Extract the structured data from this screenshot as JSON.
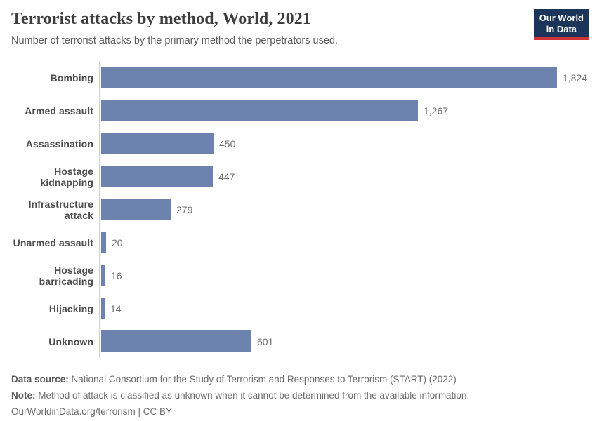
{
  "header": {
    "title": "Terrorist attacks by method, World, 2021",
    "subtitle": "Number of terrorist attacks by the primary method the perpetrators used.",
    "logo": {
      "line1": "Our World",
      "line2": "in Data"
    }
  },
  "chart_data": {
    "type": "bar",
    "orientation": "horizontal",
    "title": "Terrorist attacks by method, World, 2021",
    "subtitle": "Number of terrorist attacks by the primary method the perpetrators used.",
    "categories": [
      "Bombing",
      "Armed assault",
      "Assassination",
      "Hostage kidnapping",
      "Infrastructure attack",
      "Unarmed assault",
      "Hostage barricading",
      "Hijacking",
      "Unknown"
    ],
    "values": [
      1824,
      1267,
      450,
      447,
      279,
      20,
      16,
      14,
      601
    ],
    "value_labels": [
      "1,824",
      "1,267",
      "450",
      "447",
      "279",
      "20",
      "16",
      "14",
      "601"
    ],
    "xlabel": "",
    "ylabel": "",
    "xlim": [
      0,
      1824
    ],
    "grid": false,
    "legend": "none",
    "bar_color": "#6c84ad"
  },
  "footer": {
    "data_source_label": "Data source:",
    "data_source_text": " National Consortium for the Study of Terrorism and Responses to Terrorism (START) (2022)",
    "note_label": "Note:",
    "note_text": " Method of attack is classified as unknown when it cannot be determined from the available information.",
    "license": "OurWorldinData.org/terrorism | CC BY"
  },
  "colors": {
    "bar": "#6c84ad",
    "axis_line": "#cfcfcf",
    "logo_bg": "#1b3459",
    "logo_accent": "#cf3235",
    "title_text": "#3d3d3d",
    "body_text": "#6b6b6b"
  }
}
